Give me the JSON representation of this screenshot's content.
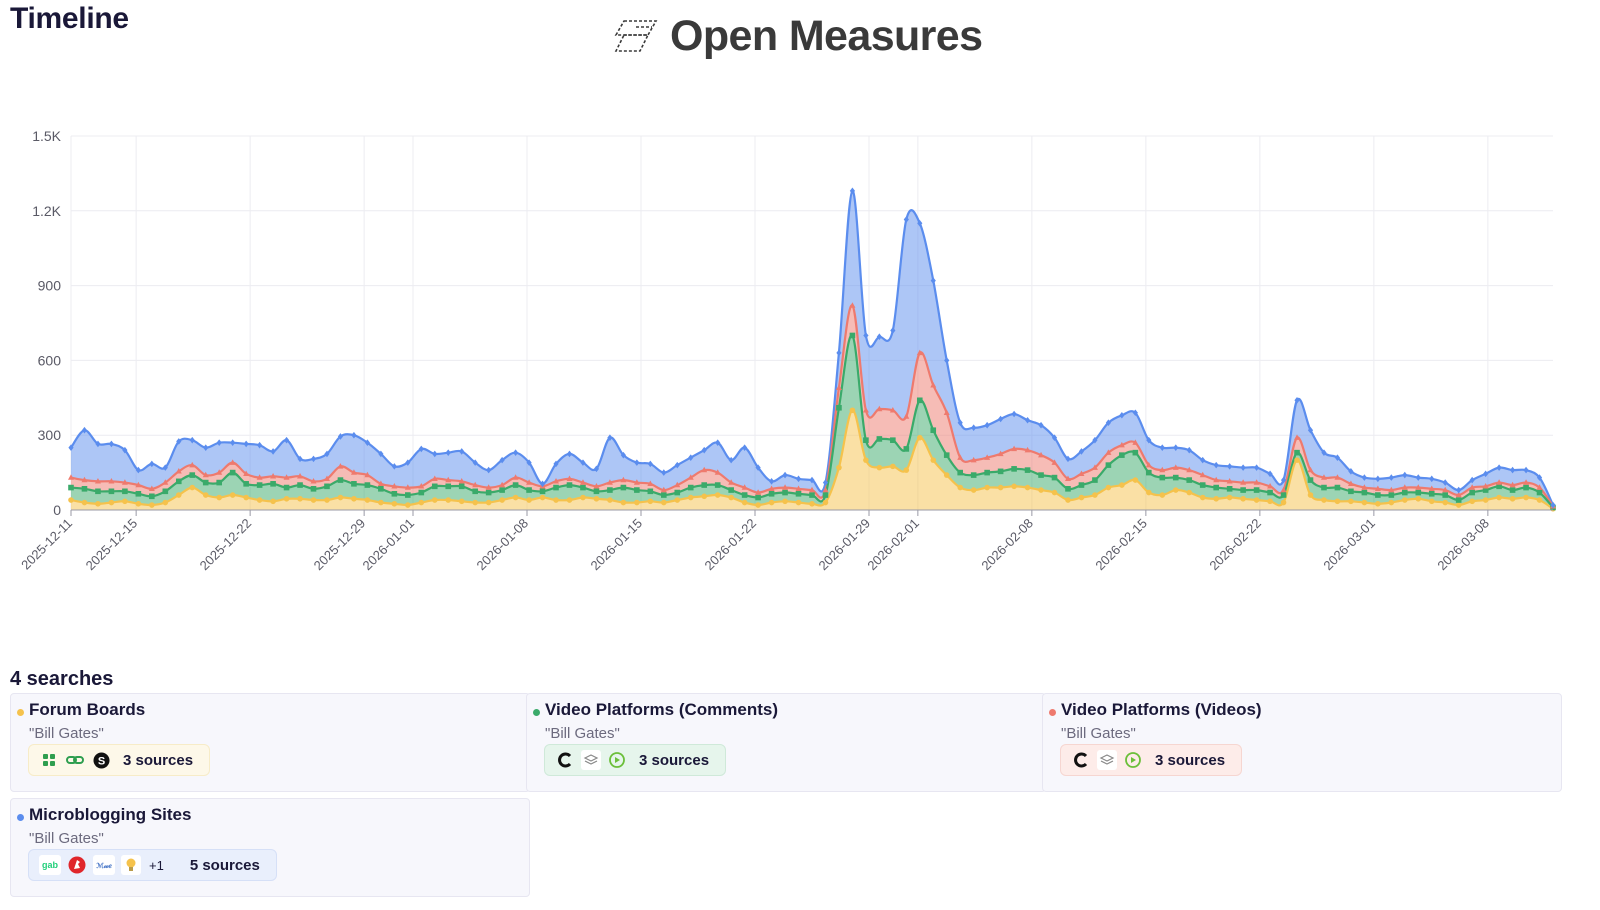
{
  "header": {
    "page_title": "Timeline",
    "brand_name": "Open Measures"
  },
  "colors": {
    "blue": "#5b8dee",
    "red": "#ee7a6e",
    "green": "#3aaa6a",
    "yellow": "#f5c24c"
  },
  "chart_data": {
    "type": "area",
    "stacked": true,
    "title": "",
    "xlabel": "",
    "ylabel": "",
    "ylim": [
      0,
      1500
    ],
    "yticks": [
      "0",
      "300",
      "600",
      "900",
      "1.2K",
      "1.5K"
    ],
    "x_start": "2025-12-11",
    "x_end": "2026-03-12",
    "x_tick_labels": [
      "2025-12-11",
      "2025-12-15",
      "2025-12-22",
      "2025-12-29",
      "2026-01-01",
      "2026-01-08",
      "2026-01-15",
      "2026-01-22",
      "2026-01-29",
      "2026-02-01",
      "2026-02-08",
      "2026-02-15",
      "2026-02-22",
      "2026-03-01",
      "2026-03-08"
    ],
    "grid": true,
    "series": [
      {
        "name": "Forum Boards",
        "color": "#f5c24c",
        "values": [
          40,
          30,
          25,
          30,
          35,
          25,
          20,
          30,
          60,
          90,
          60,
          50,
          60,
          50,
          40,
          35,
          45,
          45,
          40,
          40,
          50,
          45,
          40,
          30,
          25,
          20,
          30,
          40,
          40,
          35,
          30,
          30,
          40,
          50,
          40,
          50,
          40,
          40,
          50,
          45,
          40,
          30,
          30,
          35,
          30,
          40,
          50,
          55,
          60,
          50,
          30,
          20,
          30,
          35,
          30,
          25,
          30,
          170,
          400,
          200,
          170,
          175,
          160,
          290,
          200,
          140,
          90,
          80,
          90,
          90,
          95,
          90,
          80,
          70,
          40,
          50,
          60,
          90,
          100,
          120,
          70,
          60,
          80,
          70,
          50,
          45,
          50,
          45,
          40,
          35,
          30,
          200,
          60,
          40,
          35,
          35,
          30,
          25,
          30,
          40,
          45,
          35,
          30,
          20,
          35,
          40,
          50,
          45,
          50,
          40,
          5
        ]
      },
      {
        "name": "Video Platforms (Comments)",
        "color": "#3aaa6a",
        "values": [
          50,
          55,
          50,
          45,
          40,
          40,
          35,
          45,
          55,
          50,
          50,
          60,
          90,
          55,
          60,
          70,
          45,
          55,
          45,
          55,
          70,
          60,
          60,
          55,
          40,
          40,
          40,
          55,
          55,
          60,
          45,
          40,
          40,
          50,
          40,
          25,
          50,
          60,
          40,
          30,
          40,
          60,
          50,
          40,
          30,
          30,
          40,
          45,
          40,
          30,
          30,
          30,
          35,
          35,
          35,
          35,
          30,
          240,
          300,
          80,
          115,
          105,
          85,
          150,
          120,
          80,
          60,
          60,
          60,
          65,
          70,
          70,
          60,
          60,
          45,
          50,
          60,
          90,
          120,
          110,
          80,
          70,
          50,
          50,
          50,
          45,
          35,
          35,
          40,
          35,
          30,
          30,
          60,
          50,
          55,
          40,
          40,
          35,
          30,
          30,
          25,
          30,
          30,
          20,
          35,
          40,
          45,
          35,
          40,
          30,
          5
        ]
      },
      {
        "name": "Video Platforms (Videos)",
        "color": "#ee7a6e",
        "values": [
          40,
          35,
          40,
          40,
          35,
          35,
          30,
          35,
          40,
          40,
          30,
          40,
          40,
          40,
          30,
          30,
          40,
          35,
          30,
          30,
          55,
          45,
          40,
          20,
          30,
          30,
          25,
          30,
          25,
          20,
          25,
          20,
          20,
          30,
          30,
          20,
          25,
          25,
          20,
          20,
          30,
          30,
          30,
          30,
          20,
          30,
          40,
          60,
          50,
          30,
          30,
          20,
          20,
          20,
          20,
          20,
          20,
          80,
          120,
          120,
          120,
          120,
          130,
          190,
          180,
          170,
          60,
          60,
          60,
          70,
          80,
          80,
          80,
          60,
          40,
          45,
          50,
          50,
          40,
          40,
          30,
          30,
          40,
          40,
          40,
          30,
          30,
          30,
          30,
          25,
          20,
          60,
          40,
          40,
          40,
          30,
          20,
          25,
          20,
          20,
          20,
          20,
          20,
          20,
          20,
          15,
          15,
          20,
          20,
          20,
          5
        ]
      },
      {
        "name": "Microblogging Sites",
        "color": "#5b8dee",
        "values": [
          120,
          200,
          150,
          150,
          130,
          60,
          100,
          60,
          120,
          100,
          110,
          120,
          80,
          120,
          130,
          100,
          150,
          70,
          90,
          100,
          120,
          150,
          130,
          120,
          80,
          100,
          150,
          100,
          110,
          120,
          90,
          70,
          100,
          100,
          80,
          10,
          70,
          100,
          80,
          70,
          180,
          100,
          80,
          80,
          70,
          80,
          80,
          80,
          120,
          90,
          160,
          100,
          30,
          50,
          40,
          40,
          30,
          140,
          460,
          300,
          290,
          320,
          790,
          520,
          420,
          210,
          140,
          130,
          130,
          140,
          140,
          120,
          120,
          100,
          80,
          90,
          110,
          120,
          120,
          120,
          100,
          90,
          80,
          80,
          60,
          60,
          60,
          60,
          60,
          50,
          40,
          150,
          160,
          100,
          80,
          50,
          40,
          40,
          50,
          50,
          40,
          40,
          30,
          20,
          30,
          50,
          60,
          60,
          50,
          40,
          5
        ]
      }
    ]
  },
  "searches": {
    "heading": "4 searches",
    "cards": [
      {
        "title": "Forum Boards",
        "query": "\"Bill Gates\"",
        "sources_label": "3 sources",
        "color": "#f5c24c",
        "pill_bg": "#fdf8e9"
      },
      {
        "title": "Video Platforms (Comments)",
        "query": "\"Bill Gates\"",
        "sources_label": "3 sources",
        "color": "#3aaa6a",
        "pill_bg": "#e6f5ec"
      },
      {
        "title": "Video Platforms (Videos)",
        "query": "\"Bill Gates\"",
        "sources_label": "3 sources",
        "color": "#ee7a6e",
        "pill_bg": "#fdece9"
      },
      {
        "title": "Microblogging Sites",
        "query": "\"Bill Gates\"",
        "sources_label": "5 sources",
        "extra_label": "+1",
        "color": "#5b8dee",
        "pill_bg": "#e9effc"
      }
    ],
    "icons": {
      "forum": [
        "pinwheel-icon",
        "chain-link-icon",
        "s-badge-icon"
      ],
      "video": [
        "partial-ring-icon",
        "layers-icon",
        "play-circle-icon"
      ],
      "micro": [
        "gab-icon",
        "red-bird-icon",
        "script-logo-icon",
        "lightbulb-icon"
      ]
    },
    "icon_text": {
      "s_badge": "S",
      "gab": "gab",
      "script_logo": "ℳ𝓌𝑒"
    }
  }
}
